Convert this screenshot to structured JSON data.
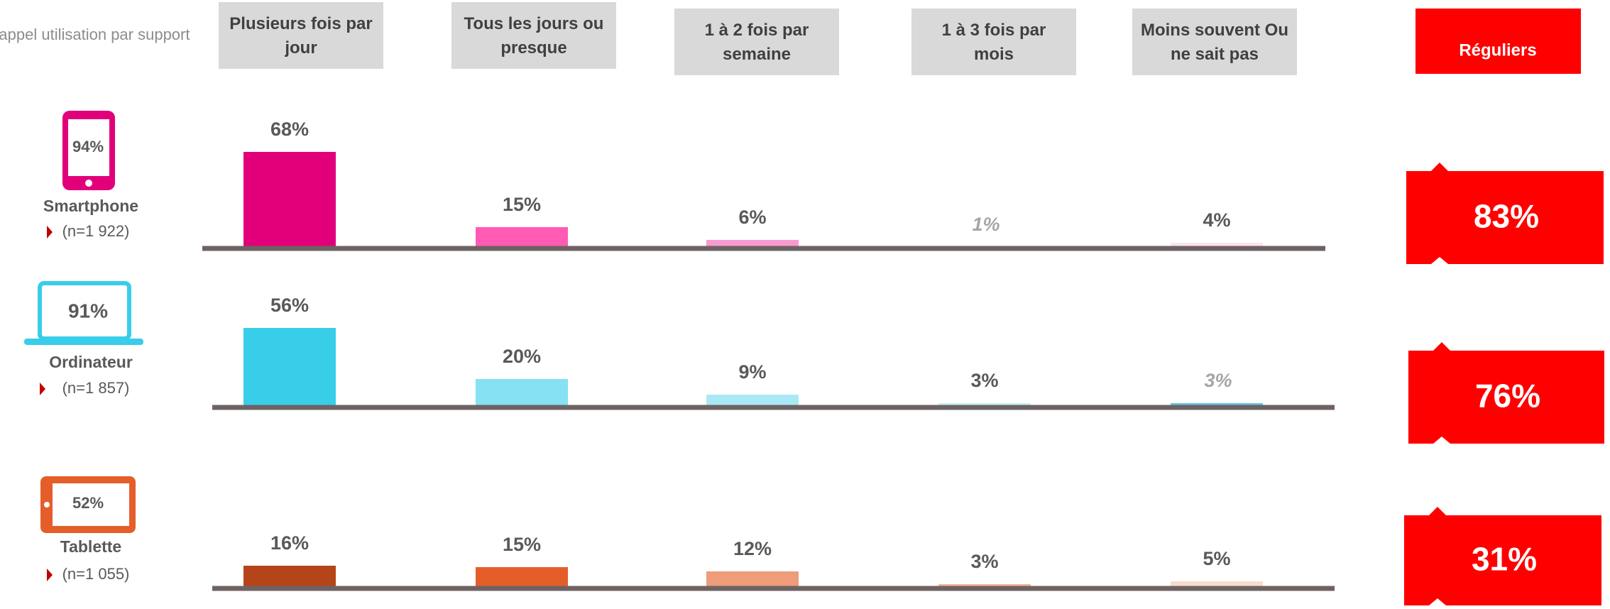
{
  "header": {
    "row_label": "Rappel utilisation par support",
    "summary_label": "Réguliers"
  },
  "columns": [
    "Plusieurs fois par jour",
    "Tous les jours ou presque",
    "1 à 2 fois par semaine",
    "1 à 3 fois par mois",
    "Moins souvent Ou ne sait pas"
  ],
  "chart_data": [
    {
      "type": "bar",
      "title": "Smartphone",
      "subtitle": "(n=1 922)",
      "device_share": 94,
      "device_share_label": "94%",
      "values": [
        68,
        15,
        6,
        1,
        4
      ],
      "value_labels": [
        "68%",
        "15%",
        "6%",
        "1%",
        "4%"
      ],
      "italic_labels": [
        false,
        false,
        false,
        true,
        false
      ],
      "colors": [
        "#e2007a",
        "#ff5bb5",
        "#f79bd0",
        "#f9c6e3",
        "#fde3f1"
      ],
      "icon_color": "#e2007a",
      "ylim": [
        0,
        100
      ],
      "regular": 83,
      "regular_label": "83%"
    },
    {
      "type": "bar",
      "title": "Ordinateur",
      "subtitle": "(n=1 857)",
      "device_share": 91,
      "device_share_label": "91%",
      "values": [
        56,
        20,
        9,
        3,
        3
      ],
      "value_labels": [
        "56%",
        "20%",
        "9%",
        "3%",
        "3%"
      ],
      "italic_labels": [
        false,
        false,
        false,
        false,
        true
      ],
      "colors": [
        "#38cde9",
        "#86e1f2",
        "#a9e9f5",
        "#c8f0f8",
        "#5fc8e0"
      ],
      "icon_color": "#38cde9",
      "ylim": [
        0,
        100
      ],
      "regular": 76,
      "regular_label": "76%"
    },
    {
      "type": "bar",
      "title": "Tablette",
      "subtitle": "(n=1 055)",
      "device_share": 52,
      "device_share_label": "52%",
      "values": [
        16,
        15,
        12,
        3,
        5
      ],
      "value_labels": [
        "16%",
        "15%",
        "12%",
        "3%",
        "5%"
      ],
      "italic_labels": [
        false,
        false,
        false,
        false,
        false
      ],
      "colors": [
        "#b5441a",
        "#e55e2a",
        "#ef9c7a",
        "#f2b49b",
        "#f7dccf"
      ],
      "icon_color": "#e55e2a",
      "ylim": [
        0,
        100
      ],
      "regular": 31,
      "regular_label": "31%"
    }
  ]
}
